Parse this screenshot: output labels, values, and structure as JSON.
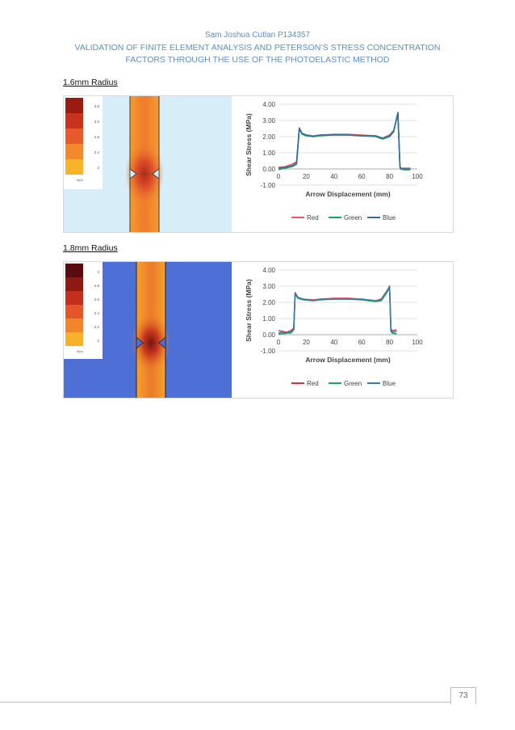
{
  "header": {
    "author": "Sam Joshua Cutlan P134357",
    "title": "VALIDATION OF FINITE ELEMENT ANALYSIS AND PETERSON’S STRESS CONCENTRATION FACTORS THROUGH THE USE OF THE PHOTOELASTIC METHOD"
  },
  "sections": [
    {
      "label": "1.6mm Radius",
      "legend": {
        "values": [
          "3.6",
          "3.2",
          "2.8",
          "2.4",
          "2"
        ],
        "unit": "Mpa",
        "colors": [
          "#9b1b12",
          "#c8331c",
          "#e85a2b",
          "#f28a2c",
          "#f7b428"
        ]
      },
      "background_color": "#d7eef8"
    },
    {
      "label": "1.8mm Radius",
      "legend": {
        "values": [
          "3",
          "2.8",
          "2.6",
          "2.4",
          "2.2",
          "2"
        ],
        "unit": "Mpa",
        "colors": [
          "#5a0c0c",
          "#8f1a12",
          "#c32f1c",
          "#e4562a",
          "#f0852c",
          "#f6b22a"
        ]
      },
      "background_color": "#4d6fd6"
    }
  ],
  "chart_data": [
    {
      "type": "line",
      "title": "",
      "xlabel": "Arrow Displacement (mm)",
      "ylabel": "Shear Stress (MPa)",
      "xlim": [
        0,
        100
      ],
      "ylim": [
        -1,
        4
      ],
      "xticks": [
        "0",
        "20",
        "40",
        "60",
        "80",
        "100"
      ],
      "yticks": [
        "4.00",
        "3.00",
        "2.00",
        "1.00",
        "0.00",
        "-1.00"
      ],
      "legend_position": "bottom",
      "series": [
        {
          "name": "Red",
          "color": "#e8585e",
          "x": [
            0,
            5,
            10,
            13,
            15,
            17,
            20,
            25,
            30,
            40,
            50,
            60,
            70,
            75,
            80,
            83,
            86,
            87.5,
            88,
            90,
            95
          ],
          "y": [
            0.1,
            0.15,
            0.3,
            0.45,
            2.55,
            2.2,
            2.1,
            2.05,
            2.1,
            2.15,
            2.15,
            2.1,
            2.05,
            1.9,
            2.1,
            2.4,
            3.4,
            0.2,
            0.05,
            0.05,
            0.05
          ]
        },
        {
          "name": "Green",
          "color": "#23a35a",
          "x": [
            0,
            5,
            10,
            13,
            15,
            17,
            20,
            25,
            30,
            40,
            50,
            60,
            70,
            75,
            80,
            83,
            86,
            87.5,
            88,
            90,
            95
          ],
          "y": [
            -0.05,
            0.05,
            0.15,
            0.3,
            2.5,
            2.15,
            2.05,
            2.0,
            2.05,
            2.1,
            2.1,
            2.05,
            2.0,
            1.85,
            2.0,
            2.3,
            3.45,
            0.1,
            0.0,
            -0.05,
            -0.05
          ]
        },
        {
          "name": "Blue",
          "color": "#2f6ea5",
          "x": [
            0,
            5,
            10,
            13,
            15,
            17,
            20,
            25,
            30,
            40,
            50,
            60,
            70,
            75,
            80,
            83,
            86,
            87.5,
            88,
            90,
            95
          ],
          "y": [
            0.05,
            0.1,
            0.2,
            0.35,
            2.5,
            2.2,
            2.1,
            2.0,
            2.1,
            2.1,
            2.1,
            2.05,
            2.05,
            1.9,
            2.05,
            2.35,
            3.5,
            0.15,
            0.0,
            0.0,
            0.0
          ]
        }
      ]
    },
    {
      "type": "line",
      "title": "",
      "xlabel": "Arrow Displacement (mm)",
      "ylabel": "Shear Stress (MPa)",
      "xlim": [
        0,
        100
      ],
      "ylim": [
        -1,
        4
      ],
      "xticks": [
        "0",
        "20",
        "40",
        "60",
        "80",
        "100"
      ],
      "yticks": [
        "4.00",
        "3.00",
        "2.00",
        "1.00",
        "0.00",
        "-1.00"
      ],
      "legend_position": "bottom",
      "series": [
        {
          "name": "Red",
          "color": "#d8323c",
          "x": [
            0,
            3,
            6,
            9,
            11,
            12,
            14,
            18,
            25,
            30,
            40,
            50,
            60,
            70,
            74,
            78,
            80,
            81,
            82,
            85
          ],
          "y": [
            0.25,
            0.2,
            0.15,
            0.25,
            0.4,
            2.6,
            2.3,
            2.2,
            2.15,
            2.2,
            2.25,
            2.25,
            2.2,
            2.1,
            2.2,
            2.7,
            3.0,
            0.35,
            0.25,
            0.3
          ]
        },
        {
          "name": "Green",
          "color": "#26a064",
          "x": [
            0,
            3,
            6,
            9,
            11,
            12,
            14,
            18,
            25,
            30,
            40,
            50,
            60,
            70,
            74,
            78,
            80,
            81,
            82,
            85
          ],
          "y": [
            0.05,
            0.05,
            0.1,
            0.1,
            0.3,
            2.5,
            2.25,
            2.15,
            2.1,
            2.15,
            2.2,
            2.2,
            2.15,
            2.05,
            2.1,
            2.6,
            2.9,
            0.2,
            0.1,
            0.05
          ]
        },
        {
          "name": "Blue",
          "color": "#3a7bb0",
          "x": [
            0,
            3,
            6,
            9,
            11,
            12,
            14,
            18,
            25,
            30,
            40,
            50,
            60,
            70,
            74,
            78,
            80,
            81,
            82,
            85
          ],
          "y": [
            0.1,
            0.15,
            0.1,
            0.2,
            0.35,
            2.55,
            2.3,
            2.2,
            2.1,
            2.2,
            2.2,
            2.2,
            2.2,
            2.1,
            2.15,
            2.7,
            2.95,
            0.25,
            0.15,
            0.2
          ]
        }
      ]
    }
  ],
  "footer": {
    "page_number": "73"
  }
}
